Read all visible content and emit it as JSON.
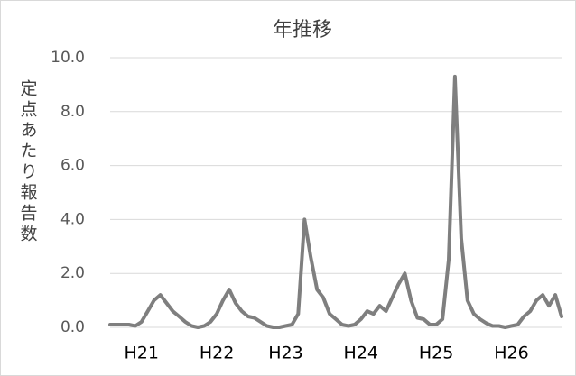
{
  "chart_data": {
    "type": "line",
    "title": "年推移",
    "y_label": "定点あたり報告数",
    "categories": [
      null,
      null,
      null,
      null,
      null,
      "H21",
      null,
      null,
      null,
      null,
      null,
      null,
      null,
      null,
      null,
      null,
      null,
      "H22",
      null,
      null,
      null,
      null,
      null,
      null,
      null,
      null,
      null,
      null,
      "H23",
      null,
      null,
      null,
      null,
      null,
      null,
      null,
      null,
      null,
      null,
      null,
      "H24",
      null,
      null,
      null,
      null,
      null,
      null,
      null,
      null,
      null,
      null,
      null,
      "H25",
      null,
      null,
      null,
      null,
      null,
      null,
      null,
      null,
      null,
      null,
      null,
      "H26",
      null,
      null,
      null,
      null,
      null,
      null,
      null,
      null
    ],
    "values": [
      0.1,
      0.1,
      0.1,
      0.1,
      0.05,
      0.2,
      0.6,
      1.0,
      1.2,
      0.9,
      0.6,
      0.4,
      0.2,
      0.05,
      0.0,
      0.05,
      0.2,
      0.5,
      1.0,
      1.4,
      0.9,
      0.6,
      0.4,
      0.35,
      0.2,
      0.05,
      0.0,
      0.0,
      0.05,
      0.1,
      0.5,
      4.0,
      2.6,
      1.4,
      1.1,
      0.5,
      0.3,
      0.1,
      0.05,
      0.1,
      0.3,
      0.6,
      0.5,
      0.8,
      0.6,
      1.1,
      1.6,
      2.0,
      1.0,
      0.35,
      0.3,
      0.1,
      0.1,
      0.3,
      2.5,
      9.3,
      3.3,
      1.0,
      0.5,
      0.3,
      0.15,
      0.05,
      0.05,
      0.0,
      0.05,
      0.1,
      0.4,
      0.6,
      1.0,
      1.2,
      0.8,
      1.2,
      0.4
    ],
    "color": "#7f7f7f",
    "ylim": [
      0,
      10
    ],
    "yticks": [
      {
        "value": 0,
        "label": "0.0"
      },
      {
        "value": 2,
        "label": "2.0"
      },
      {
        "value": 4,
        "label": "4.0"
      },
      {
        "value": 6,
        "label": "6.0"
      },
      {
        "value": 8,
        "label": "8.0"
      },
      {
        "value": 10,
        "label": "10.0"
      }
    ],
    "grid": true
  }
}
